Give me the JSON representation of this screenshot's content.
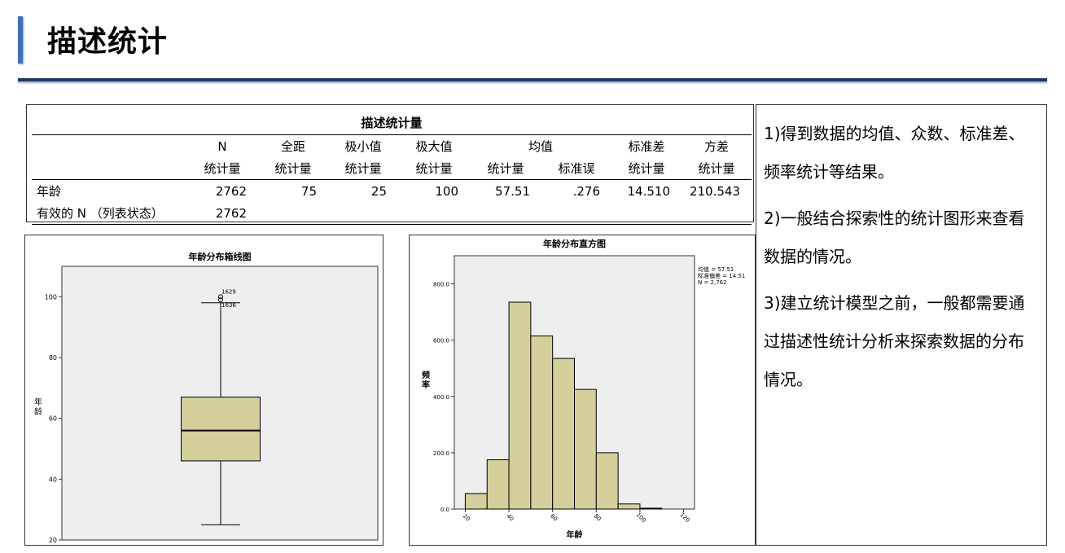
{
  "header": {
    "title": "描述统计"
  },
  "descriptives_table": {
    "caption": "描述统计量",
    "columns": [
      "N",
      "全距",
      "极小值",
      "极大值",
      "均值",
      "标准差",
      "方差"
    ],
    "subcolumns": [
      "统计量",
      "统计量",
      "统计量",
      "统计量",
      "统计量",
      "标准误",
      "统计量",
      "统计量"
    ],
    "rows": [
      {
        "label": "年龄",
        "values": [
          "2762",
          "75",
          "25",
          "100",
          "57.51",
          ".276",
          "14.510",
          "210.543"
        ]
      },
      {
        "label": "有效的 N （列表状态）",
        "values": [
          "2762",
          "",
          "",
          "",
          "",
          "",
          "",
          ""
        ]
      }
    ]
  },
  "notes": [
    "1)得到数据的均值、众数、标准差、频率统计等结果。",
    "2)一般结合探索性的统计图形来查看数据的情况。",
    "3)建立统计模型之前，一般都需要通过描述性统计分析来探索数据的分布情况。"
  ],
  "colors": {
    "accent_bar": "#3f6fb6",
    "rule": "#1f3a66",
    "plot_bg": "#eeeeee",
    "fill": "#d4cf9b"
  },
  "chart_data": [
    {
      "type": "box",
      "title": "年龄分布箱线图",
      "ylabel": "年龄",
      "ylim": [
        20,
        110
      ],
      "yticks": [
        20,
        40,
        60,
        80,
        100
      ],
      "whisker_low": 25,
      "q1": 46,
      "median": 56,
      "q3": 67,
      "whisker_high": 98,
      "outliers": [
        {
          "label": "1629",
          "value": 100
        },
        {
          "label": "1636",
          "value": 99
        }
      ]
    },
    {
      "type": "bar",
      "title": "年龄分布直方图",
      "xlabel": "年龄",
      "ylabel": "频率",
      "xlim": [
        15,
        125
      ],
      "xticks": [
        "20",
        "40",
        "60",
        "80",
        "100",
        "120"
      ],
      "ylim": [
        0,
        900
      ],
      "yticks": [
        "0.0",
        "200.0",
        "400.0",
        "600.0",
        "800.0"
      ],
      "bins": [
        20,
        30,
        40,
        50,
        60,
        70,
        80,
        90,
        100
      ],
      "bin_width": 10,
      "values": [
        55,
        175,
        735,
        615,
        535,
        425,
        200,
        18,
        3
      ],
      "stats_text": [
        "均值 = 57.51",
        "标准偏差 = 14.51",
        "N = 2,762"
      ]
    }
  ]
}
